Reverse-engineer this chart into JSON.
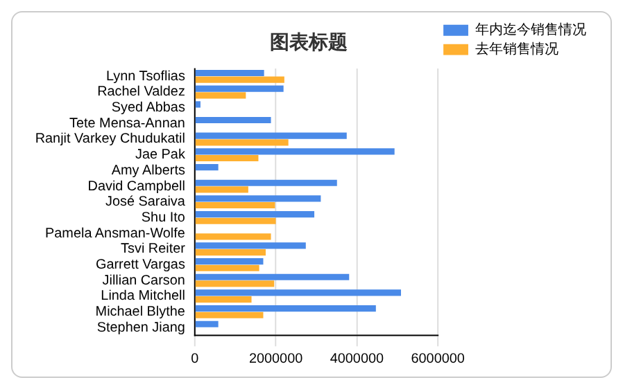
{
  "chart_data": {
    "type": "bar",
    "orientation": "horizontal",
    "title": "图表标题",
    "categories": [
      "Lynn Tsoflias",
      "Rachel Valdez",
      "Syed Abbas",
      "Tete Mensa-Annan",
      "Ranjit Varkey Chudukatil",
      "Jae Pak",
      "Amy Alberts",
      "David Campbell",
      "José Saraiva",
      "Shu Ito",
      "Pamela Ansman-Wolfe",
      "Tsvi Reiter",
      "Garrett Vargas",
      "Jillian Carson",
      "Linda Mitchell",
      "Michael Blythe",
      "Stephen Jiang"
    ],
    "series": [
      {
        "name": "年内迄今销售情况",
        "color": "#4a8ae8",
        "values": [
          1710000,
          2190000,
          140000,
          1880000,
          3750000,
          4930000,
          580000,
          3510000,
          3110000,
          2950000,
          null,
          2740000,
          1690000,
          3810000,
          5090000,
          4470000,
          580000
        ]
      },
      {
        "name": "去年销售情况",
        "color": "#ffb030",
        "values": [
          2210000,
          1260000,
          null,
          null,
          2310000,
          1570000,
          null,
          1320000,
          1980000,
          2000000,
          1880000,
          1750000,
          1590000,
          1960000,
          1400000,
          1690000,
          null
        ]
      }
    ],
    "xlim": [
      0,
      6000000
    ],
    "xticks": [
      0,
      2000000,
      4000000,
      6000000
    ],
    "grid": "x",
    "legend": "top right"
  }
}
